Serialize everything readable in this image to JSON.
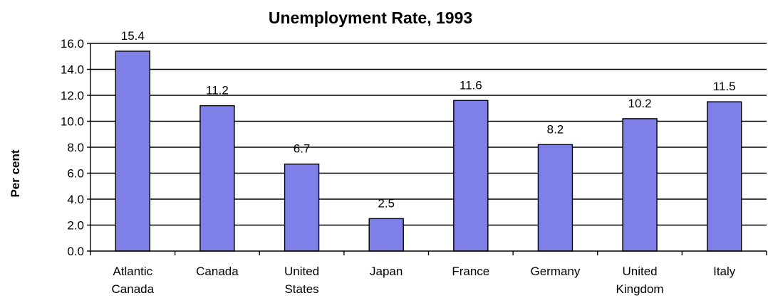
{
  "chart_data": {
    "type": "bar",
    "title": "Unemployment Rate, 1993",
    "xlabel": "",
    "ylabel": "Per cent",
    "categories": [
      [
        "Atlantic",
        "Canada"
      ],
      [
        "Canada"
      ],
      [
        "United",
        "States"
      ],
      [
        "Japan"
      ],
      [
        "France"
      ],
      [
        "Germany"
      ],
      [
        "United",
        "Kingdom"
      ],
      [
        "Italy"
      ]
    ],
    "values": [
      15.4,
      11.2,
      6.7,
      2.5,
      11.6,
      8.2,
      10.2,
      11.5
    ],
    "data_labels": [
      "15.4",
      "11.2",
      "6.7",
      "2.5",
      "11.6",
      "8.2",
      "10.2",
      "11.5"
    ],
    "ylim": [
      0,
      16
    ],
    "yticks": [
      "0.0",
      "2.0",
      "4.0",
      "6.0",
      "8.0",
      "10.0",
      "12.0",
      "14.0",
      "16.0"
    ],
    "grid": true,
    "bar_color": "#7f7fe8",
    "legend": "none"
  }
}
